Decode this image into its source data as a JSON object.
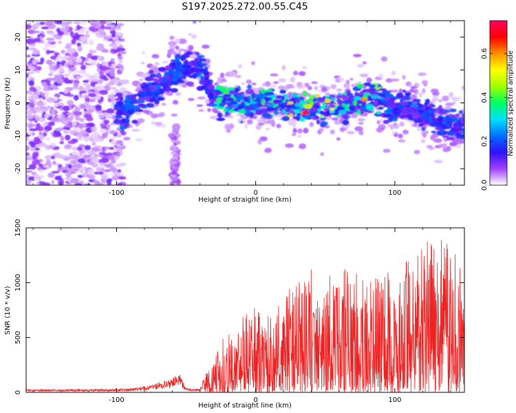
{
  "title": "S197.2025.272.00.55.C45",
  "chart_data": [
    {
      "type": "heatmap",
      "name": "spectrogram",
      "xlabel": "Height of straight line (km)",
      "ylabel": "Frequency (Hz)",
      "xlim": [
        -165,
        150
      ],
      "ylim": [
        -25,
        25
      ],
      "xticks": [
        -100,
        0,
        100
      ],
      "yticks": [
        -20,
        -10,
        0,
        10,
        20
      ],
      "colorbar": {
        "label": "Normalized spectral amplitude",
        "range": [
          0,
          0.75
        ],
        "ticks": [
          0.0,
          0.2,
          0.4,
          0.6
        ],
        "colors": [
          "#ffffff",
          "#a040ff",
          "#3010ff",
          "#0070ff",
          "#00e0ff",
          "#00ff60",
          "#a0ff00",
          "#ffff00",
          "#ff9000",
          "#ff0000",
          "#ff0060"
        ]
      },
      "ridge": {
        "x": [
          -100,
          -90,
          -80,
          -70,
          -60,
          -50,
          -45,
          -40,
          -35,
          -30,
          -20,
          -10,
          0,
          10,
          20,
          30,
          35,
          40,
          50,
          60,
          70,
          80,
          90,
          100,
          110,
          120,
          130,
          140,
          150
        ],
        "freq": [
          -3,
          -2,
          2,
          5,
          9,
          11,
          11,
          10,
          6,
          1,
          1,
          0,
          0,
          0,
          0,
          -1,
          -2,
          -1,
          -1,
          -1,
          0,
          2,
          0,
          -2,
          -2,
          -3,
          -5,
          -7,
          -7
        ]
      },
      "peak": {
        "x": 35,
        "freq": -3,
        "amplitude": 0.75
      }
    },
    {
      "type": "line",
      "name": "snr",
      "xlabel": "Height of straight line (km)",
      "ylabel": "SNR (10 * v/v)",
      "xlim": [
        -165,
        150
      ],
      "ylim": [
        0,
        1500
      ],
      "xticks": [
        -100,
        0,
        100
      ],
      "yticks": [
        0,
        500,
        1000,
        1500
      ],
      "color": "#ee2222",
      "envelope": {
        "x": [
          -165,
          -120,
          -90,
          -75,
          -60,
          -55,
          -50,
          -40,
          -37,
          -35,
          -30,
          -25,
          -20,
          -15,
          -10,
          0,
          10,
          20,
          30,
          40,
          50,
          60,
          70,
          80,
          90,
          100,
          110,
          120,
          130,
          140,
          150
        ],
        "value": [
          30,
          28,
          35,
          70,
          130,
          180,
          40,
          30,
          150,
          190,
          300,
          450,
          580,
          600,
          720,
          780,
          750,
          900,
          1050,
          1160,
          1180,
          1140,
          1120,
          1050,
          1100,
          1150,
          1250,
          1400,
          1480,
          1350,
          1100
        ]
      },
      "samples": 1600
    }
  ]
}
